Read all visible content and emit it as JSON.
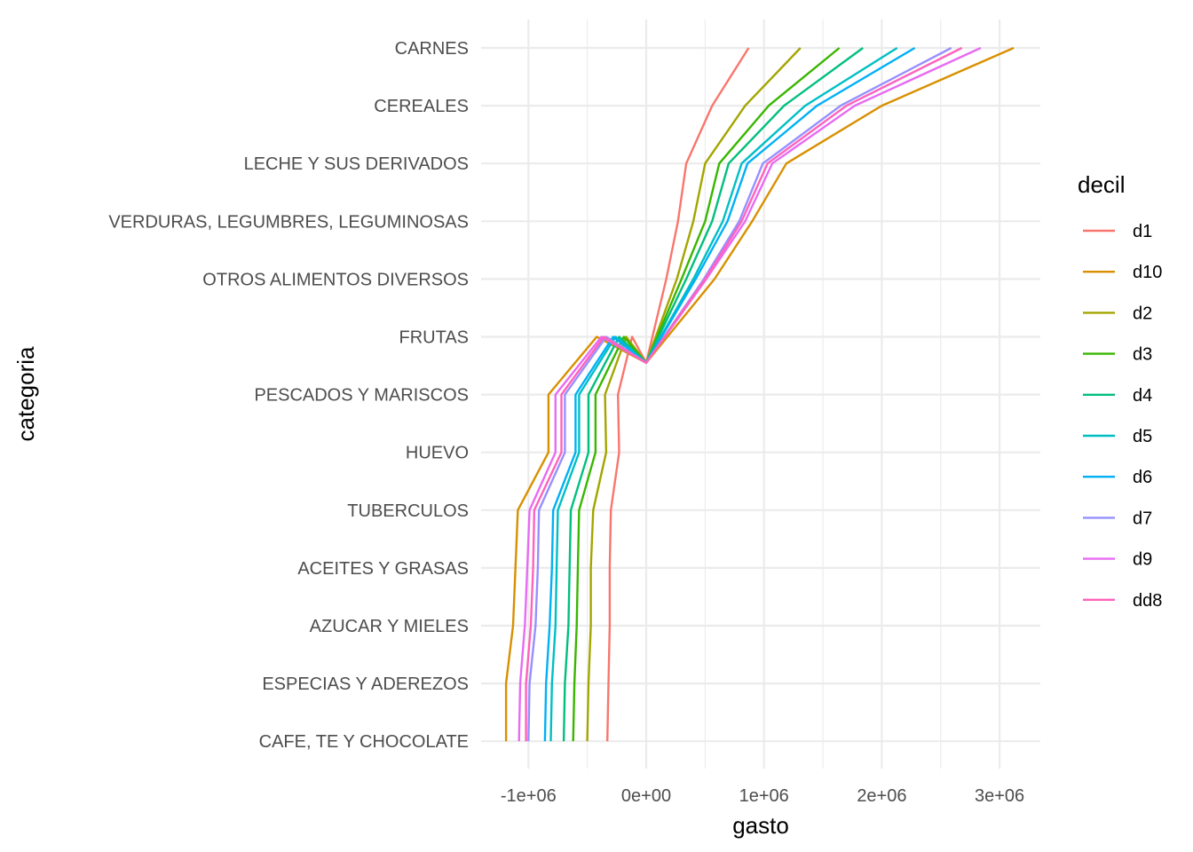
{
  "chart_data": {
    "type": "line",
    "xlabel": "gasto",
    "ylabel": "categoria",
    "xlim": [
      -1400000,
      3350000
    ],
    "x_ticks": [
      -1000000,
      0,
      1000000,
      2000000,
      3000000
    ],
    "x_tick_labels": [
      "-1e+06",
      "0e+00",
      "1e+06",
      "2e+06",
      "3e+06"
    ],
    "x_minor_ticks": [
      -500000,
      500000,
      1500000,
      2500000
    ],
    "grid": true,
    "legend_position": "right",
    "legend_title": "decil",
    "categories": [
      "CARNES",
      "CEREALES",
      "LECHE Y SUS DERIVADOS",
      "VERDURAS, LEGUMBRES, LEGUMINOSAS",
      "OTROS ALIMENTOS DIVERSOS",
      "FRUTAS",
      "PESCADOS Y MARISCOS",
      "HUEVO",
      "TUBERCULOS",
      "ACEITES Y GRASAS",
      "AZUCAR Y MIELES",
      "ESPECIAS Y ADEREZOS",
      "CAFE, TE Y CHOCOLATE"
    ],
    "series": [
      {
        "name": "d1",
        "color": "#F8766D",
        "values": [
          870000,
          560000,
          340000,
          270000,
          170000,
          -120000,
          -240000,
          -230000,
          -300000,
          -310000,
          -310000,
          -320000,
          -330000
        ]
      },
      {
        "name": "d10",
        "color": "#D89000",
        "values": [
          3120000,
          2000000,
          1190000,
          900000,
          580000,
          -420000,
          -830000,
          -830000,
          -1090000,
          -1110000,
          -1130000,
          -1190000,
          -1190000
        ]
      },
      {
        "name": "d2",
        "color": "#A3A500",
        "values": [
          1310000,
          840000,
          500000,
          400000,
          260000,
          -170000,
          -350000,
          -340000,
          -450000,
          -470000,
          -470000,
          -490000,
          -500000
        ]
      },
      {
        "name": "d3",
        "color": "#39B600",
        "values": [
          1640000,
          1040000,
          620000,
          500000,
          300000,
          -190000,
          -430000,
          -430000,
          -570000,
          -580000,
          -590000,
          -610000,
          -620000
        ]
      },
      {
        "name": "d4",
        "color": "#00BF7D",
        "values": [
          1840000,
          1170000,
          700000,
          560000,
          340000,
          -230000,
          -490000,
          -490000,
          -640000,
          -650000,
          -660000,
          -690000,
          -700000
        ]
      },
      {
        "name": "d5",
        "color": "#00BFC4",
        "values": [
          2130000,
          1350000,
          810000,
          650000,
          400000,
          -260000,
          -570000,
          -570000,
          -750000,
          -760000,
          -770000,
          -800000,
          -810000
        ]
      },
      {
        "name": "d6",
        "color": "#00B0F6",
        "values": [
          2280000,
          1450000,
          860000,
          690000,
          420000,
          -280000,
          -600000,
          -600000,
          -790000,
          -800000,
          -820000,
          -850000,
          -860000
        ]
      },
      {
        "name": "d7",
        "color": "#9590FF",
        "values": [
          2590000,
          1650000,
          990000,
          790000,
          490000,
          -340000,
          -690000,
          -690000,
          -910000,
          -920000,
          -940000,
          -990000,
          -1000000
        ]
      },
      {
        "name": "d9",
        "color": "#E76BF3",
        "values": [
          2840000,
          1770000,
          1070000,
          840000,
          510000,
          -380000,
          -770000,
          -770000,
          -990000,
          -1010000,
          -1030000,
          -1070000,
          -1080000
        ]
      },
      {
        "name": "dd8",
        "color": "#FF62BC",
        "values": [
          2680000,
          1700000,
          1030000,
          810000,
          500000,
          -360000,
          -720000,
          -720000,
          -950000,
          -960000,
          -980000,
          -1020000,
          -1020000
        ]
      }
    ],
    "pivot": {
      "category_position": 5.45,
      "value": 0
    }
  }
}
